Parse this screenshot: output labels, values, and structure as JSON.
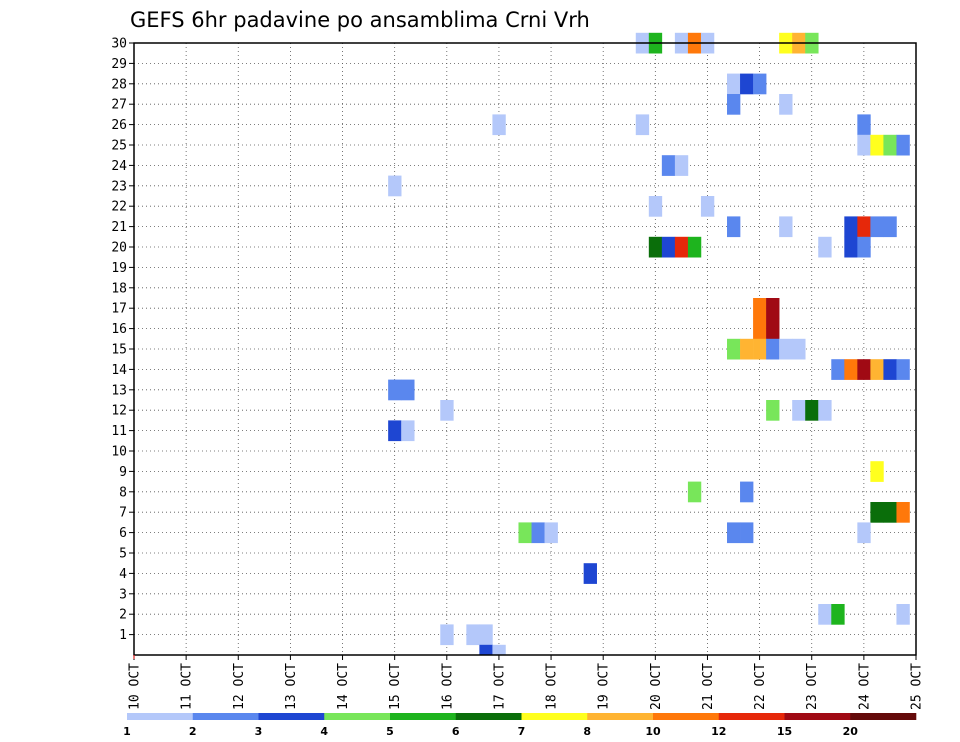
{
  "chart_data": {
    "type": "heatmap",
    "title": "GEFS 6hr padavine po ansamblima Crni Vrh",
    "x_tick_labels": [
      "10 OCT",
      "11 OCT",
      "12 OCT",
      "13 OCT",
      "14 OCT",
      "15 OCT",
      "16 OCT",
      "17 OCT",
      "18 OCT",
      "19 OCT",
      "20 OCT",
      "21 OCT",
      "22 OCT",
      "23 OCT",
      "24 OCT",
      "25 OCT"
    ],
    "y_tick_labels": [
      "1",
      "2",
      "3",
      "4",
      "5",
      "6",
      "7",
      "8",
      "9",
      "10",
      "11",
      "12",
      "13",
      "14",
      "15",
      "16",
      "17",
      "18",
      "19",
      "20",
      "21",
      "22",
      "23",
      "24",
      "25",
      "26",
      "27",
      "28",
      "29",
      "30"
    ],
    "xlim_days": [
      10,
      25
    ],
    "ylim": [
      0,
      30
    ],
    "grid": true,
    "colorbar": {
      "labels": [
        "1",
        "2",
        "3",
        "4",
        "5",
        "6",
        "7",
        "8",
        "10",
        "12",
        "15",
        "20"
      ],
      "colors": [
        "#b4c8fa",
        "#5a87ee",
        "#1e46d2",
        "#78e65a",
        "#1eb41e",
        "#0a6e0a",
        "#ffff1e",
        "#ffb432",
        "#ff780a",
        "#e6280a",
        "#a00a14",
        "#640a0a"
      ]
    },
    "cells": [
      [
        30,
        19.75,
        0
      ],
      [
        30,
        20.0,
        4
      ],
      [
        30,
        20.5,
        0
      ],
      [
        30,
        20.75,
        8
      ],
      [
        30,
        21.0,
        0
      ],
      [
        30,
        22.5,
        6
      ],
      [
        30,
        22.75,
        7
      ],
      [
        30,
        23.0,
        3
      ],
      [
        28,
        21.5,
        0
      ],
      [
        28,
        21.75,
        2
      ],
      [
        28,
        22.0,
        1
      ],
      [
        27,
        21.5,
        1
      ],
      [
        27,
        22.5,
        0
      ],
      [
        26,
        17.0,
        0
      ],
      [
        26,
        19.75,
        0
      ],
      [
        26,
        24.0,
        1
      ],
      [
        25,
        24.0,
        0
      ],
      [
        25,
        24.25,
        6
      ],
      [
        25,
        24.5,
        3
      ],
      [
        25,
        24.75,
        1
      ],
      [
        24,
        20.25,
        1
      ],
      [
        24,
        20.5,
        0
      ],
      [
        23,
        15.0,
        0
      ],
      [
        22,
        20.0,
        0
      ],
      [
        22,
        21.0,
        0
      ],
      [
        21,
        21.5,
        1
      ],
      [
        21,
        22.5,
        0
      ],
      [
        21,
        23.75,
        2
      ],
      [
        21,
        24.0,
        9
      ],
      [
        21,
        24.25,
        1
      ],
      [
        21,
        24.5,
        1
      ],
      [
        20,
        20.0,
        5
      ],
      [
        20,
        20.25,
        2
      ],
      [
        20,
        20.5,
        9
      ],
      [
        20,
        20.75,
        4
      ],
      [
        20,
        23.25,
        0
      ],
      [
        20,
        23.75,
        2
      ],
      [
        20,
        24.0,
        1
      ],
      [
        17,
        22.0,
        8
      ],
      [
        17,
        22.25,
        10
      ],
      [
        16,
        22.0,
        8
      ],
      [
        16,
        22.25,
        10
      ],
      [
        15,
        21.5,
        3
      ],
      [
        15,
        21.75,
        7
      ],
      [
        15,
        22.0,
        7
      ],
      [
        15,
        22.25,
        1
      ],
      [
        15,
        22.5,
        0
      ],
      [
        15,
        22.75,
        0
      ],
      [
        14,
        23.5,
        1
      ],
      [
        14,
        23.75,
        8
      ],
      [
        14,
        24.0,
        10
      ],
      [
        14,
        24.25,
        7
      ],
      [
        14,
        24.5,
        2
      ],
      [
        14,
        24.75,
        1
      ],
      [
        13,
        15.0,
        1
      ],
      [
        13,
        15.25,
        1
      ],
      [
        12,
        16.0,
        0
      ],
      [
        12,
        22.25,
        3
      ],
      [
        12,
        22.75,
        0
      ],
      [
        12,
        23.0,
        5
      ],
      [
        12,
        23.25,
        0
      ],
      [
        11,
        15.0,
        2
      ],
      [
        11,
        15.25,
        0
      ],
      [
        9,
        24.25,
        6
      ],
      [
        8,
        20.75,
        3
      ],
      [
        8,
        21.75,
        1
      ],
      [
        7,
        24.25,
        5
      ],
      [
        7,
        24.5,
        5
      ],
      [
        7,
        24.75,
        8
      ],
      [
        6,
        17.5,
        3
      ],
      [
        6,
        17.75,
        1
      ],
      [
        6,
        18.0,
        0
      ],
      [
        6,
        21.5,
        1
      ],
      [
        6,
        21.75,
        1
      ],
      [
        6,
        24.0,
        0
      ],
      [
        4,
        18.75,
        2
      ],
      [
        2,
        23.25,
        0
      ],
      [
        2,
        23.5,
        4
      ],
      [
        2,
        24.75,
        0
      ],
      [
        1,
        16.0,
        0
      ],
      [
        1,
        16.5,
        0
      ],
      [
        1,
        16.75,
        0
      ]
    ],
    "extra_cells_bottom": [
      [
        0,
        16.75,
        2
      ],
      [
        0,
        17.0,
        0
      ]
    ]
  }
}
